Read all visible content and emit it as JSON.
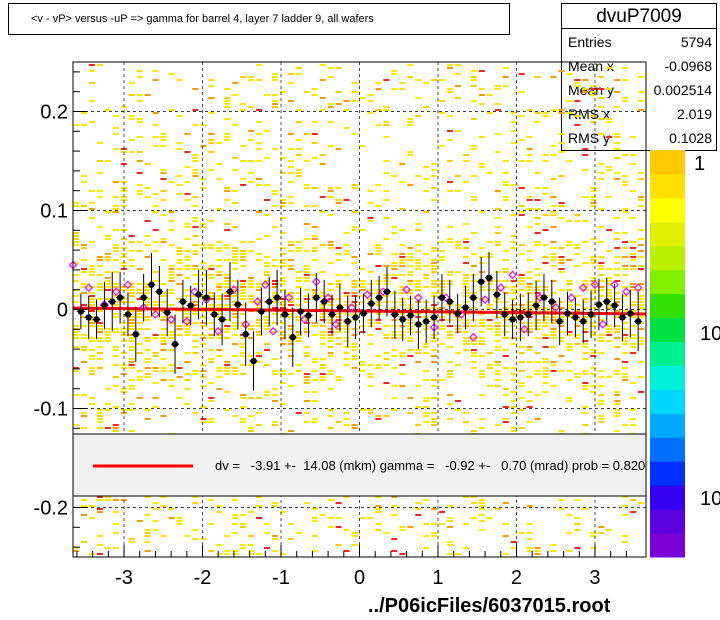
{
  "title": "<v - vP>      versus  -uP =>  gamma for barrel 4, layer 7 ladder 9, all wafers",
  "stats": {
    "name": "dvuP7009",
    "rows": [
      {
        "label": "Entries",
        "value": "5794"
      },
      {
        "label": "Mean x",
        "value": "-0.0968"
      },
      {
        "label": "Mean y",
        "value": "0.002514"
      },
      {
        "label": "RMS x",
        "value": "2.019"
      },
      {
        "label": "RMS y",
        "value": "0.1028"
      }
    ]
  },
  "footer": "../P06icFiles/6037015.root",
  "legend_text": "dv =   -3.91 +-  14.08 (mkm) gamma =   -0.92 +-   0.70 (mrad) prob = 0.820",
  "palette_labels": [
    "1",
    "10",
    "10"
  ],
  "colors": {
    "fit": "#ff0000",
    "profile": "#000000",
    "open_markers": "#ff00ff",
    "cells": "#ffd700",
    "frame": "#000000"
  },
  "chart_data": {
    "type": "scatter",
    "xlim": [
      -3.65,
      3.65
    ],
    "ylim": [
      -0.25,
      0.25
    ],
    "x_ticks": [
      -3,
      -2,
      -1,
      0,
      1,
      2,
      3
    ],
    "x_tick_labels": [
      "-3",
      "-2",
      "-1",
      "0",
      "1",
      "2",
      "3"
    ],
    "y_ticks": [
      0.2,
      0.1,
      0,
      -0.1,
      -0.2
    ],
    "y_tick_labels": [
      "0.2",
      "0.1",
      "0",
      "-0.1",
      "-0.2"
    ],
    "grid": true,
    "log_z": true,
    "fit_line": {
      "x": [
        -3.65,
        3.65
      ],
      "y": [
        0.0015,
        -0.0045
      ]
    },
    "profile": {
      "x": [
        -3.55,
        -3.45,
        -3.35,
        -3.25,
        -3.15,
        -3.05,
        -2.95,
        -2.85,
        -2.75,
        -2.65,
        -2.55,
        -2.45,
        -2.35,
        -2.25,
        -2.15,
        -2.05,
        -1.95,
        -1.85,
        -1.75,
        -1.65,
        -1.55,
        -1.45,
        -1.35,
        -1.25,
        -1.15,
        -1.05,
        -0.95,
        -0.85,
        -0.75,
        -0.65,
        -0.55,
        -0.45,
        -0.35,
        -0.25,
        -0.15,
        -0.05,
        0.05,
        0.15,
        0.25,
        0.35,
        0.45,
        0.55,
        0.65,
        0.75,
        0.85,
        0.95,
        1.05,
        1.15,
        1.25,
        1.35,
        1.45,
        1.55,
        1.65,
        1.75,
        1.85,
        1.95,
        2.05,
        2.15,
        2.25,
        2.35,
        2.45,
        2.55,
        2.65,
        2.75,
        2.85,
        2.95,
        3.05,
        3.15,
        3.25,
        3.35,
        3.45,
        3.55
      ],
      "y": [
        -0.002,
        -0.008,
        -0.01,
        0.004,
        0.008,
        0.012,
        -0.005,
        -0.025,
        0.012,
        0.025,
        0.018,
        -0.003,
        -0.035,
        0.008,
        0.004,
        0.015,
        0.012,
        -0.005,
        -0.01,
        0.018,
        0.005,
        -0.025,
        -0.052,
        -0.002,
        0.008,
        0.012,
        -0.005,
        -0.028,
        -0.002,
        -0.006,
        0.012,
        0.008,
        -0.005,
        0.002,
        -0.012,
        -0.008,
        -0.004,
        0.006,
        0.012,
        0.018,
        -0.005,
        -0.01,
        -0.006,
        -0.015,
        -0.012,
        -0.008,
        0.012,
        0.008,
        -0.004,
        0.002,
        0.012,
        0.028,
        0.032,
        0.015,
        -0.005,
        -0.01,
        -0.008,
        -0.005,
        0.004,
        0.012,
        0.008,
        -0.012,
        -0.004,
        -0.008,
        -0.012,
        -0.005,
        0.005,
        0.008,
        0.004,
        -0.008,
        -0.004,
        -0.012
      ],
      "err": [
        0.018,
        0.022,
        0.02,
        0.024,
        0.03,
        0.026,
        0.022,
        0.028,
        0.024,
        0.032,
        0.026,
        0.024,
        0.03,
        0.022,
        0.02,
        0.025,
        0.028,
        0.022,
        0.026,
        0.03,
        0.025,
        0.032,
        0.03,
        0.024,
        0.025,
        0.028,
        0.025,
        0.03,
        0.024,
        0.022,
        0.025,
        0.022,
        0.02,
        0.024,
        0.026,
        0.022,
        0.02,
        0.024,
        0.022,
        0.025,
        0.024,
        0.022,
        0.02,
        0.025,
        0.022,
        0.022,
        0.024,
        0.022,
        0.02,
        0.022,
        0.024,
        0.025,
        0.026,
        0.024,
        0.022,
        0.02,
        0.024,
        0.022,
        0.025,
        0.024,
        0.022,
        0.024,
        0.022,
        0.02,
        0.022,
        0.024,
        0.026,
        0.024,
        0.022,
        0.024,
        0.024,
        0.03
      ]
    },
    "open_points": {
      "x": [
        -3.65,
        -3.45,
        -3.25,
        -3.1,
        -2.95,
        -2.75,
        -2.6,
        -2.4,
        -2.2,
        -2.1,
        -1.95,
        -1.8,
        -1.6,
        -1.45,
        -1.3,
        -1.2,
        -1.1,
        -0.9,
        -0.7,
        -0.55,
        -0.4,
        -0.3,
        -0.1,
        0.1,
        0.3,
        0.45,
        0.6,
        0.75,
        0.95,
        1.1,
        1.3,
        1.45,
        1.6,
        1.8,
        1.95,
        2.1,
        2.3,
        2.5,
        2.7,
        2.85,
        3.0,
        3.1,
        3.25,
        3.4,
        3.55
      ],
      "y": [
        0.045,
        0.022,
        0.005,
        0.018,
        0.025,
        0.002,
        -0.005,
        -0.01,
        -0.012,
        0.018,
        0.01,
        -0.022,
        0.02,
        -0.015,
        0.008,
        0.025,
        -0.022,
        0.012,
        -0.01,
        0.028,
        0.012,
        -0.015,
        0.002,
        0.015,
        0.018,
        -0.005,
        0.02,
        0.012,
        -0.018,
        0.012,
        -0.005,
        -0.028,
        0.01,
        0.022,
        0.035,
        -0.02,
        0.012,
        0.002,
        0.012,
        0.022,
        0.025,
        -0.015,
        0.025,
        0.018,
        0.022
      ]
    }
  }
}
